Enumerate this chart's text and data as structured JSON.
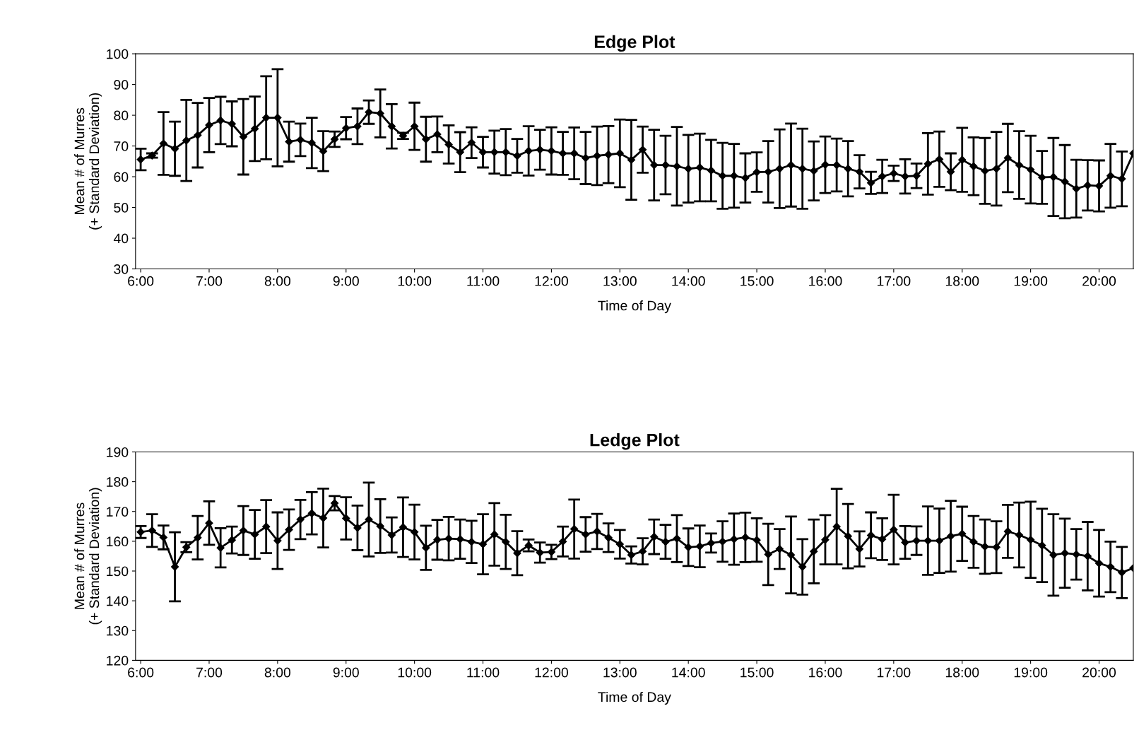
{
  "chart_data": [
    {
      "type": "line",
      "title": "Edge Plot",
      "xlabel": "Time of Day",
      "ylabel": "Mean # of Murres\n(+ Standard Deviation)",
      "x": [
        6,
        6.167,
        6.333,
        6.5,
        6.667,
        6.833,
        7,
        7.167,
        7.333,
        7.5,
        7.667,
        7.833,
        8,
        8.167,
        8.333,
        8.5,
        8.667,
        8.833,
        9,
        9.167,
        9.333,
        9.5,
        9.667,
        9.833,
        10,
        10.167,
        10.333,
        10.5,
        10.667,
        10.833,
        11,
        11.167,
        11.333,
        11.5,
        11.667,
        11.833,
        12,
        12.167,
        12.333,
        12.5,
        12.667,
        12.833,
        13,
        13.167,
        13.333,
        13.5,
        13.667,
        13.833,
        14,
        14.167,
        14.333,
        14.5,
        14.667,
        14.833,
        15,
        15.167,
        15.333,
        15.5,
        15.667,
        15.833,
        16,
        16.167,
        16.333,
        16.5,
        16.667,
        16.833,
        17,
        17.167,
        17.333,
        17.5,
        17.667,
        17.833,
        18,
        18.167,
        18.333,
        18.5,
        18.667,
        18.833,
        19,
        19.167,
        19.333,
        19.5,
        19.667,
        19.833,
        20,
        20.167,
        20.333,
        20.5
      ],
      "series": [
        {
          "color": "#000000",
          "values": [
            65.6,
            66.9,
            70.8,
            69.1,
            71.8,
            73.5,
            76.8,
            78.3,
            77.2,
            73,
            75.6,
            79.2,
            79.2,
            71.4,
            72,
            71,
            68.3,
            72.2,
            75.8,
            76.4,
            81,
            80.6,
            76.4,
            73.3,
            76.4,
            72.2,
            73.8,
            70.5,
            68,
            71.1,
            68,
            68,
            68,
            66.8,
            68.4,
            68.8,
            68.4,
            67.6,
            67.6,
            66.1,
            66.8,
            67.2,
            67.6,
            65.5,
            68.8,
            63.8,
            63.8,
            63.4,
            62.6,
            63,
            62,
            60.3,
            60.3,
            59.6,
            61.5,
            61.6,
            62.6,
            63.8,
            62.6,
            61.9,
            63.9,
            63.8,
            62.6,
            61.6,
            58,
            60.1,
            61.1,
            60.1,
            60.3,
            64.2,
            65.7,
            61.6,
            65.5,
            63.4,
            61.9,
            62.6,
            66.1,
            63.8,
            62.3,
            59.8,
            59.9,
            58.4,
            56.1,
            57.2,
            57,
            60.3,
            59.3,
            67.6
          ],
          "errors": [
            3.5,
            0.7,
            10.2,
            8.8,
            13.2,
            10.5,
            8.8,
            7.7,
            7.3,
            12.3,
            10.5,
            13.5,
            15.8,
            6.5,
            5.3,
            8.2,
            6.5,
            2.5,
            3.6,
            5.8,
            3.8,
            7.8,
            7.2,
            1,
            7.7,
            7.3,
            5.8,
            6.2,
            6.5,
            5,
            5,
            7,
            7.5,
            5.5,
            8,
            6.5,
            7.7,
            7,
            8.4,
            8.5,
            9.5,
            9.3,
            11,
            13,
            7.5,
            11.5,
            9.5,
            12.8,
            11,
            11,
            10,
            10.7,
            10.4,
            8,
            6.4,
            10,
            12.8,
            13.5,
            13,
            9.6,
            9.2,
            8.6,
            9,
            5.4,
            3.6,
            5.4,
            2.5,
            5.6,
            4,
            10,
            9,
            6,
            10.4,
            9.4,
            10.7,
            12,
            11.1,
            11,
            11,
            8.6,
            12.7,
            11.9,
            9.4,
            8.2,
            8.3,
            10.4,
            8.9,
            null
          ]
        }
      ],
      "xlim": [
        5.925,
        20.5
      ],
      "ylim": [
        30,
        100
      ],
      "yticks": [
        30,
        40,
        50,
        60,
        70,
        80,
        90,
        100
      ],
      "xticks": [
        {
          "value": 6,
          "label": "6:00"
        },
        {
          "value": 7,
          "label": "7:00"
        },
        {
          "value": 8,
          "label": "8:00"
        },
        {
          "value": 9,
          "label": "9:00"
        },
        {
          "value": 10,
          "label": "10:00"
        },
        {
          "value": 11,
          "label": "11:00"
        },
        {
          "value": 12,
          "label": "12:00"
        },
        {
          "value": 13,
          "label": "13:00"
        },
        {
          "value": 14,
          "label": "14:00"
        },
        {
          "value": 15,
          "label": "15:00"
        },
        {
          "value": 16,
          "label": "16:00"
        },
        {
          "value": 17,
          "label": "17:00"
        },
        {
          "value": 18,
          "label": "18:00"
        },
        {
          "value": 19,
          "label": "19:00"
        },
        {
          "value": 20,
          "label": "20:00"
        }
      ],
      "marker": "diamond",
      "line_style": "solid",
      "grid": false
    },
    {
      "type": "line",
      "title": "Ledge Plot",
      "xlabel": "Time of Day",
      "ylabel": "Mean # of Murres\n(+ Standard Deviation)",
      "x": [
        6,
        6.167,
        6.333,
        6.5,
        6.667,
        6.833,
        7,
        7.167,
        7.333,
        7.5,
        7.667,
        7.833,
        8,
        8.167,
        8.333,
        8.5,
        8.667,
        8.833,
        9,
        9.167,
        9.333,
        9.5,
        9.667,
        9.833,
        10,
        10.167,
        10.333,
        10.5,
        10.667,
        10.833,
        11,
        11.167,
        11.333,
        11.5,
        11.667,
        11.833,
        12,
        12.167,
        12.333,
        12.5,
        12.667,
        12.833,
        13,
        13.167,
        13.333,
        13.5,
        13.667,
        13.833,
        14,
        14.167,
        14.333,
        14.5,
        14.667,
        14.833,
        15,
        15.167,
        15.333,
        15.5,
        15.667,
        15.833,
        16,
        16.167,
        16.333,
        16.5,
        16.667,
        16.833,
        17,
        17.167,
        17.333,
        17.5,
        17.667,
        17.833,
        18,
        18.167,
        18.333,
        18.5,
        18.667,
        18.833,
        19,
        19.167,
        19.333,
        19.5,
        19.667,
        19.833,
        20,
        20.167,
        20.333,
        20.5
      ],
      "series": [
        {
          "color": "#000000",
          "values": [
            163.1,
            163.6,
            161.3,
            151.4,
            158,
            161.2,
            166.1,
            157.8,
            160.4,
            163.6,
            162.3,
            164.9,
            160.2,
            163.9,
            167.3,
            169.4,
            167.8,
            172.8,
            167.7,
            164.5,
            167.3,
            165.1,
            162.1,
            164.7,
            163.1,
            157.8,
            160.5,
            160.9,
            160.7,
            159.8,
            159,
            162.3,
            159.8,
            156,
            158.6,
            156.2,
            156.4,
            159.9,
            164.1,
            162.3,
            163.3,
            161.2,
            159,
            155.4,
            156.6,
            161.5,
            159.8,
            160.9,
            158,
            158.3,
            159.4,
            159.9,
            160.7,
            161.3,
            160.4,
            155.6,
            157.4,
            155.4,
            151.4,
            156.6,
            160.5,
            164.9,
            161.7,
            157.4,
            162,
            160.7,
            163.9,
            159.6,
            160.2,
            160.2,
            160.2,
            161.7,
            162.5,
            159.8,
            158.2,
            158,
            163.3,
            162.1,
            160.5,
            158.6,
            155.4,
            156,
            155.6,
            155,
            152.6,
            151.4,
            149.5,
            151
          ],
          "errors": [
            2,
            5.5,
            4,
            11.6,
            1.7,
            7.3,
            7.3,
            6.6,
            4.5,
            8.2,
            8.2,
            8.9,
            9.5,
            6.8,
            6.6,
            7.1,
            9.9,
            2.4,
            7.1,
            7.5,
            12.4,
            9,
            5.9,
            10,
            9.2,
            7.4,
            6.7,
            7.3,
            6.6,
            7.1,
            10.1,
            10.5,
            9.1,
            7.4,
            2,
            3.4,
            2.4,
            5,
            9.9,
            5.8,
            5.9,
            4.8,
            4.8,
            2.9,
            4.4,
            5.8,
            5.7,
            7.9,
            6.3,
            7,
            3.2,
            6.8,
            8.6,
            8.3,
            7.3,
            10.3,
            6.7,
            12.9,
            9.3,
            10.7,
            8.3,
            12.7,
            10.8,
            5.9,
            7.7,
            7,
            11.7,
            5.5,
            4.8,
            11.5,
            10.8,
            11.9,
            9.1,
            8.7,
            9.1,
            8.7,
            8.9,
            10.9,
            12.8,
            12.3,
            13.7,
            11.6,
            8.5,
            11.5,
            11.2,
            8.5,
            8.6,
            null
          ]
        }
      ],
      "xlim": [
        5.925,
        20.5
      ],
      "ylim": [
        120,
        190
      ],
      "yticks": [
        120,
        130,
        140,
        150,
        160,
        170,
        180,
        190
      ],
      "xticks": [
        {
          "value": 6,
          "label": "6:00"
        },
        {
          "value": 7,
          "label": "7:00"
        },
        {
          "value": 8,
          "label": "8:00"
        },
        {
          "value": 9,
          "label": "9:00"
        },
        {
          "value": 10,
          "label": "10:00"
        },
        {
          "value": 11,
          "label": "11:00"
        },
        {
          "value": 12,
          "label": "12:00"
        },
        {
          "value": 13,
          "label": "13:00"
        },
        {
          "value": 14,
          "label": "14:00"
        },
        {
          "value": 15,
          "label": "15:00"
        },
        {
          "value": 16,
          "label": "16:00"
        },
        {
          "value": 17,
          "label": "17:00"
        },
        {
          "value": 18,
          "label": "18:00"
        },
        {
          "value": 19,
          "label": "19:00"
        },
        {
          "value": 20,
          "label": "20:00"
        }
      ],
      "marker": "diamond",
      "line_style": "solid",
      "grid": false
    }
  ]
}
